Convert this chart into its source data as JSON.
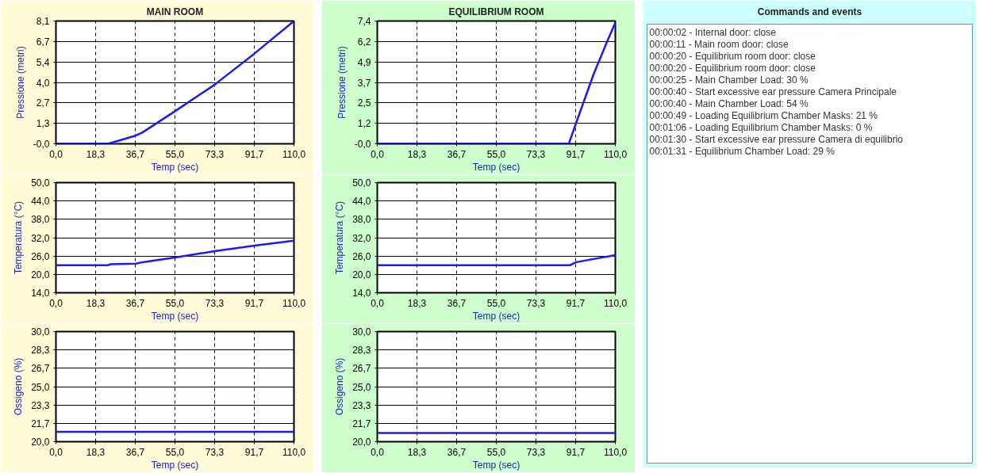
{
  "chart_data": [
    {
      "type": "line",
      "title": "MAIN ROOM",
      "xlabel": "Temp (sec)",
      "ylabel": "Pressione (metri)",
      "grid": true,
      "line_style": "solid",
      "xlim": [
        0,
        110
      ],
      "xticks": [
        {
          "value": 0,
          "label": "0,0"
        },
        {
          "value": 18.33,
          "label": "18,3"
        },
        {
          "value": 36.67,
          "label": "36,7"
        },
        {
          "value": 55,
          "label": "55,0"
        },
        {
          "value": 73.33,
          "label": "73,3"
        },
        {
          "value": 91.67,
          "label": "91,7"
        },
        {
          "value": 110,
          "label": "110,0"
        }
      ],
      "ylim": [
        0,
        8.1
      ],
      "yticks": [
        {
          "value": 0,
          "label": "-0,0"
        },
        {
          "value": 1.35,
          "label": "1,3"
        },
        {
          "value": 2.7,
          "label": "2,7"
        },
        {
          "value": 4.05,
          "label": "4,0"
        },
        {
          "value": 5.4,
          "label": "5,4"
        },
        {
          "value": 6.75,
          "label": "6,7"
        },
        {
          "value": 8.1,
          "label": "8,1"
        }
      ],
      "series": [
        {
          "color": "#1a1aff",
          "x": [
            0,
            24,
            30,
            37,
            40,
            55,
            73.3,
            91.7,
            110
          ],
          "values": [
            0,
            0,
            0.25,
            0.55,
            0.75,
            2.15,
            3.9,
            5.95,
            8.1
          ]
        }
      ]
    },
    {
      "type": "line",
      "xlabel": "Temp (sec)",
      "ylabel": "Temperatura (°C)",
      "grid": true,
      "line_style": "solid",
      "xlim": [
        0,
        110
      ],
      "xticks": [
        {
          "value": 0,
          "label": "0,0"
        },
        {
          "value": 18.33,
          "label": "18,3"
        },
        {
          "value": 36.67,
          "label": "36,7"
        },
        {
          "value": 55,
          "label": "55,0"
        },
        {
          "value": 73.33,
          "label": "73,3"
        },
        {
          "value": 91.67,
          "label": "91,7"
        },
        {
          "value": 110,
          "label": "110,0"
        }
      ],
      "ylim": [
        14,
        50
      ],
      "yticks": [
        {
          "value": 14,
          "label": "14,0"
        },
        {
          "value": 20,
          "label": "20,0"
        },
        {
          "value": 26,
          "label": "26,0"
        },
        {
          "value": 32,
          "label": "32,0"
        },
        {
          "value": 38,
          "label": "38,0"
        },
        {
          "value": 44,
          "label": "44,0"
        },
        {
          "value": 50,
          "label": "50,0"
        }
      ],
      "series": [
        {
          "color": "#1a1aff",
          "x": [
            0,
            24,
            25,
            37,
            40,
            55,
            73.3,
            91.7,
            110
          ],
          "values": [
            23,
            23,
            23.3,
            23.5,
            24,
            25.5,
            27.6,
            29.4,
            31
          ]
        }
      ]
    },
    {
      "type": "line",
      "xlabel": "Temp (sec)",
      "ylabel": "Ossigeno (%)",
      "grid": true,
      "line_style": "solid",
      "xlim": [
        0,
        110
      ],
      "xticks": [
        {
          "value": 0,
          "label": "0,0"
        },
        {
          "value": 18.33,
          "label": "18,3"
        },
        {
          "value": 36.67,
          "label": "36,7"
        },
        {
          "value": 55,
          "label": "55,0"
        },
        {
          "value": 73.33,
          "label": "73,3"
        },
        {
          "value": 91.67,
          "label": "91,7"
        },
        {
          "value": 110,
          "label": "110,0"
        }
      ],
      "ylim": [
        20,
        30
      ],
      "yticks": [
        {
          "value": 20,
          "label": "20,0"
        },
        {
          "value": 21.67,
          "label": "21,7"
        },
        {
          "value": 23.33,
          "label": "23,3"
        },
        {
          "value": 25,
          "label": "25,0"
        },
        {
          "value": 26.67,
          "label": "26,7"
        },
        {
          "value": 28.33,
          "label": "28,3"
        },
        {
          "value": 30,
          "label": "30,0"
        }
      ],
      "series": [
        {
          "color": "#1a1aff",
          "x": [
            0,
            110
          ],
          "values": [
            20.9,
            20.9
          ]
        }
      ]
    },
    {
      "type": "line",
      "title": "EQUILIBRIUM ROOM",
      "xlabel": "Temp (sec)",
      "ylabel": "Pressione (metri)",
      "grid": true,
      "line_style": "solid",
      "xlim": [
        0,
        110
      ],
      "xticks": [
        {
          "value": 0,
          "label": "0,0"
        },
        {
          "value": 18.33,
          "label": "18,3"
        },
        {
          "value": 36.67,
          "label": "36,7"
        },
        {
          "value": 55,
          "label": "55,0"
        },
        {
          "value": 73.33,
          "label": "73,3"
        },
        {
          "value": 91.67,
          "label": "91,7"
        },
        {
          "value": 110,
          "label": "110,0"
        }
      ],
      "ylim": [
        0,
        7.4
      ],
      "yticks": [
        {
          "value": 0,
          "label": "-0,0"
        },
        {
          "value": 1.23,
          "label": "1,2"
        },
        {
          "value": 2.47,
          "label": "2,5"
        },
        {
          "value": 3.7,
          "label": "3,7"
        },
        {
          "value": 4.93,
          "label": "4,9"
        },
        {
          "value": 6.17,
          "label": "6,2"
        },
        {
          "value": 7.4,
          "label": "7,4"
        }
      ],
      "series": [
        {
          "color": "#1a1aff",
          "x": [
            0,
            88.5,
            92,
            100,
            106,
            110
          ],
          "values": [
            0,
            0,
            1.3,
            4.2,
            6.1,
            7.3
          ]
        }
      ]
    },
    {
      "type": "line",
      "xlabel": "Temp (sec)",
      "ylabel": "Temperatura (°C)",
      "grid": true,
      "line_style": "solid",
      "xlim": [
        0,
        110
      ],
      "xticks": [
        {
          "value": 0,
          "label": "0,0"
        },
        {
          "value": 18.33,
          "label": "18,3"
        },
        {
          "value": 36.67,
          "label": "36,7"
        },
        {
          "value": 55,
          "label": "55,0"
        },
        {
          "value": 73.33,
          "label": "73,3"
        },
        {
          "value": 91.67,
          "label": "91,7"
        },
        {
          "value": 110,
          "label": "110,0"
        }
      ],
      "ylim": [
        14,
        50
      ],
      "yticks": [
        {
          "value": 14,
          "label": "14,0"
        },
        {
          "value": 20,
          "label": "20,0"
        },
        {
          "value": 26,
          "label": "26,0"
        },
        {
          "value": 32,
          "label": "32,0"
        },
        {
          "value": 38,
          "label": "38,0"
        },
        {
          "value": 44,
          "label": "44,0"
        },
        {
          "value": 50,
          "label": "50,0"
        }
      ],
      "series": [
        {
          "color": "#1a1aff",
          "x": [
            0,
            89,
            92,
            110
          ],
          "values": [
            23,
            23,
            24,
            26.3
          ]
        }
      ]
    },
    {
      "type": "line",
      "xlabel": "Temp (sec)",
      "ylabel": "Ossigeno (%)",
      "grid": true,
      "line_style": "solid",
      "xlim": [
        0,
        110
      ],
      "xticks": [
        {
          "value": 0,
          "label": "0,0"
        },
        {
          "value": 18.33,
          "label": "18,3"
        },
        {
          "value": 36.67,
          "label": "36,7"
        },
        {
          "value": 55,
          "label": "55,0"
        },
        {
          "value": 73.33,
          "label": "73,3"
        },
        {
          "value": 91.67,
          "label": "91,7"
        },
        {
          "value": 110,
          "label": "110,0"
        }
      ],
      "ylim": [
        20,
        30
      ],
      "yticks": [
        {
          "value": 20,
          "label": "20,0"
        },
        {
          "value": 21.67,
          "label": "21,7"
        },
        {
          "value": 23.33,
          "label": "23,3"
        },
        {
          "value": 25,
          "label": "25,0"
        },
        {
          "value": 26.67,
          "label": "26,7"
        },
        {
          "value": 28.33,
          "label": "28,3"
        },
        {
          "value": 30,
          "label": "30,0"
        }
      ],
      "series": [
        {
          "color": "#1a1aff",
          "x": [
            0,
            110
          ],
          "values": [
            20.8,
            20.8
          ]
        }
      ]
    },
    {
      "type": "other",
      "title": "Commands and events",
      "annotations": [
        "00:00:02 - Internal door: close",
        "00:00:11 - Main room door: close",
        "00:00:20 - Equilibrium room door: close",
        "00:00:20 - Equilibrium room door: close",
        "00:00:25 - Main Chamber Load: 30 %",
        "00:00:40 - Start excessive ear pressure Camera Principale",
        "00:00:40 - Main Chamber Load: 54 %",
        "00:00:49 - Loading Equilibrium Chamber Masks: 21 %",
        "00:01:06 - Loading Equilibrium Chamber Masks: 0 %",
        "00:01:30 - Start excessive ear pressure Camera di equilibrio",
        "00:01:31 - Equilibrium Chamber Load: 29 %"
      ]
    }
  ]
}
